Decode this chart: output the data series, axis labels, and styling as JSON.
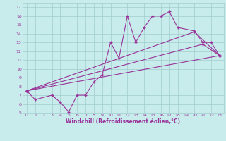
{
  "xlabel": "Windchill (Refroidissement éolien,°C)",
  "bg_color": "#c8ecec",
  "grid_color": "#a0cccc",
  "line_color": "#993399",
  "xlim": [
    -0.5,
    23.5
  ],
  "ylim": [
    5,
    17.5
  ],
  "xticks": [
    0,
    1,
    2,
    3,
    4,
    5,
    6,
    7,
    8,
    9,
    10,
    11,
    12,
    13,
    14,
    15,
    16,
    17,
    18,
    19,
    20,
    21,
    22,
    23
  ],
  "yticks": [
    5,
    6,
    7,
    8,
    9,
    10,
    11,
    12,
    13,
    14,
    15,
    16,
    17
  ],
  "line1_x": [
    0,
    1,
    3,
    4,
    5,
    6,
    7,
    8,
    9,
    10,
    11,
    12,
    13,
    14,
    15,
    16,
    17,
    18,
    20,
    21,
    22,
    23
  ],
  "line1_y": [
    7.5,
    6.5,
    7.0,
    6.2,
    5.1,
    7.0,
    7.0,
    8.5,
    9.3,
    13.0,
    11.2,
    16.0,
    13.0,
    14.7,
    16.0,
    16.0,
    16.5,
    14.7,
    14.3,
    13.0,
    13.0,
    11.5
  ],
  "line2_x": [
    0,
    23
  ],
  "line2_y": [
    7.5,
    11.5
  ],
  "line3_x": [
    0,
    21,
    23
  ],
  "line3_y": [
    7.5,
    12.8,
    11.5
  ],
  "line4_x": [
    0,
    20,
    23
  ],
  "line4_y": [
    7.5,
    14.2,
    11.5
  ]
}
